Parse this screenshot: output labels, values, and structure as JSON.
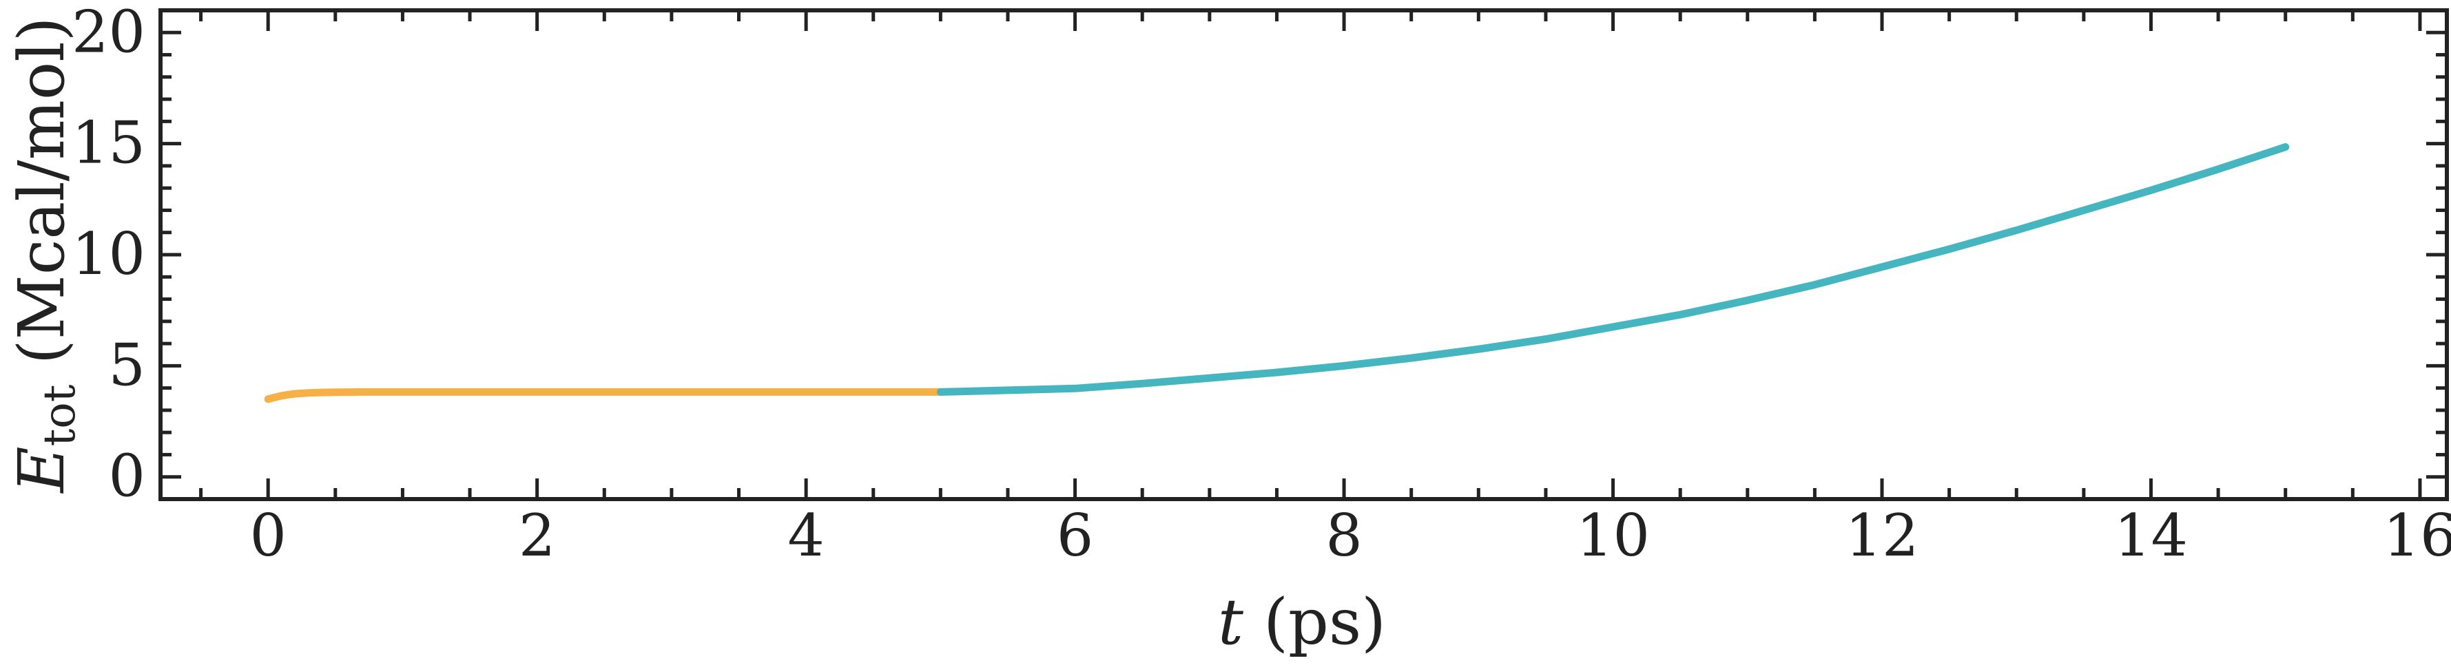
{
  "chart_data": {
    "type": "line",
    "title": "",
    "xlabel": "t (ps)",
    "ylabel": "Etot (Mcal/mol)",
    "xlabel_parts": {
      "var": "t",
      "unit": " (ps)"
    },
    "ylabel_parts": {
      "var": "E",
      "sub": "tot",
      "unit": " (Mcal/mol)"
    },
    "xlim": [
      -0.8,
      16.2
    ],
    "ylim": [
      -1,
      21
    ],
    "xticks": [
      0,
      2,
      4,
      6,
      8,
      10,
      12,
      14,
      16
    ],
    "xticks_minor": [
      -0.5,
      0.5,
      1,
      1.5,
      2.5,
      3,
      3.5,
      4.5,
      5,
      5.5,
      6.5,
      7,
      7.5,
      8.5,
      9,
      9.5,
      10.5,
      11,
      11.5,
      12.5,
      13,
      13.5,
      14.5,
      15,
      15.5
    ],
    "yticks": [
      0,
      5,
      10,
      15,
      20
    ],
    "yticks_minor": [
      1,
      2,
      3,
      4,
      6,
      7,
      8,
      9,
      11,
      12,
      13,
      14,
      16,
      17,
      18,
      19
    ],
    "grid": false,
    "legend": "none",
    "series": [
      {
        "color": "#F7B046",
        "x": [
          0,
          0.05,
          0.1,
          0.15,
          0.2,
          0.3,
          0.4,
          0.5,
          0.7,
          1.0,
          1.5,
          2.0,
          2.5,
          3.0,
          3.5,
          4.0,
          4.5,
          5.0
        ],
        "y": [
          3.5,
          3.58,
          3.65,
          3.7,
          3.74,
          3.78,
          3.8,
          3.81,
          3.82,
          3.82,
          3.82,
          3.82,
          3.82,
          3.82,
          3.82,
          3.82,
          3.82,
          3.82
        ]
      },
      {
        "color": "#45B5C0",
        "x": [
          5.0,
          5.5,
          6.0,
          6.5,
          7.0,
          7.5,
          8.0,
          8.5,
          9.0,
          9.5,
          10.0,
          10.5,
          11.0,
          11.5,
          12.0,
          12.5,
          13.0,
          13.5,
          14.0,
          14.5,
          15.0
        ],
        "y": [
          3.82,
          3.9,
          3.98,
          4.2,
          4.45,
          4.7,
          5.0,
          5.35,
          5.75,
          6.2,
          6.75,
          7.3,
          7.95,
          8.65,
          9.45,
          10.25,
          11.1,
          12.0,
          12.9,
          13.85,
          14.85
        ]
      }
    ]
  }
}
